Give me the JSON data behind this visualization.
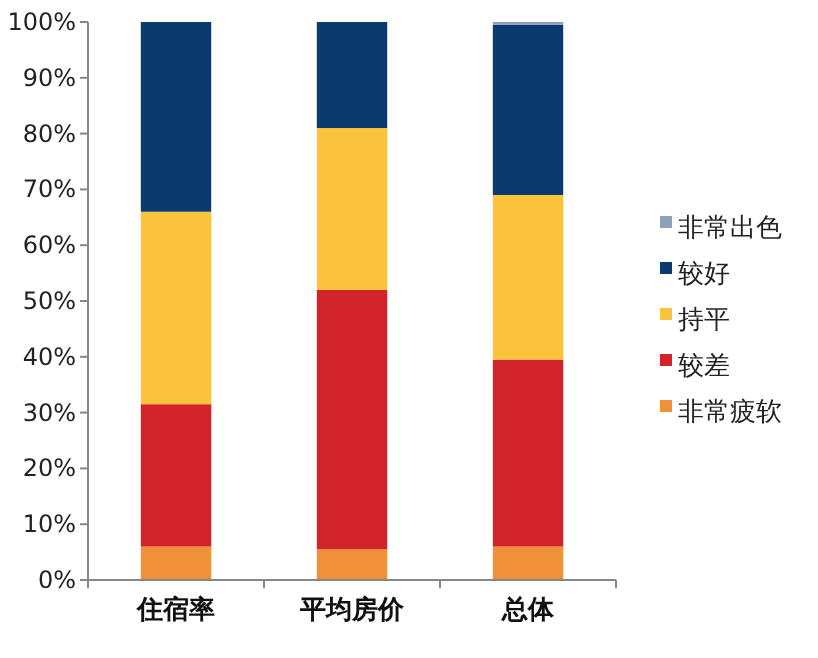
{
  "chart_data": {
    "type": "bar",
    "stacked": true,
    "categories": [
      "住宿率",
      "平均房价",
      "总体"
    ],
    "series": [
      {
        "name": "非常疲软",
        "color": "#f0913a",
        "values": [
          6,
          5.5,
          6
        ]
      },
      {
        "name": "较差",
        "color": "#d2232a",
        "values": [
          25.5,
          46.5,
          33.5
        ]
      },
      {
        "name": "持平",
        "color": "#fbc33c",
        "values": [
          34.5,
          29,
          29.5
        ]
      },
      {
        "name": "较好",
        "color": "#0b3a6e",
        "values": [
          34,
          19,
          30.5
        ]
      },
      {
        "name": "非常出色",
        "color": "#8fa0b8",
        "values": [
          0,
          0,
          0.5
        ]
      }
    ],
    "ylim": [
      0,
      100
    ],
    "yticks": [
      {
        "value": 0,
        "label": "0%"
      },
      {
        "value": 10,
        "label": "10%"
      },
      {
        "value": 20,
        "label": "20%"
      },
      {
        "value": 30,
        "label": "30%"
      },
      {
        "value": 40,
        "label": "40%"
      },
      {
        "value": 50,
        "label": "50%"
      },
      {
        "value": 60,
        "label": "60%"
      },
      {
        "value": 70,
        "label": "70%"
      },
      {
        "value": 80,
        "label": "80%"
      },
      {
        "value": 90,
        "label": "90%"
      },
      {
        "value": 100,
        "label": "100%"
      }
    ],
    "legend": "right",
    "grid": false
  }
}
